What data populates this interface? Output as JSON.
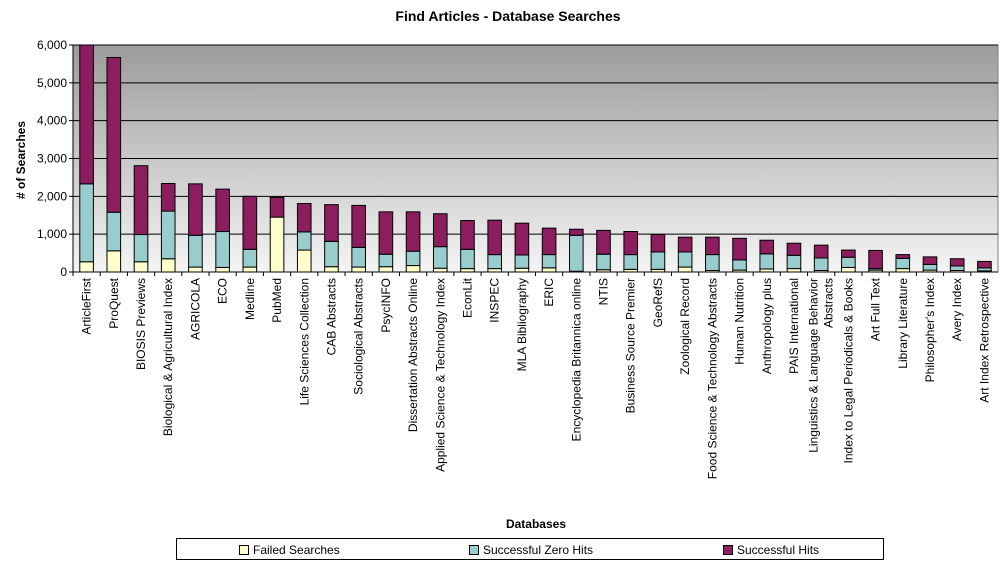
{
  "chart_data": {
    "type": "bar",
    "stacked": true,
    "title": "Find Articles - Database Searches",
    "xlabel": "Databases",
    "ylabel": "# of Searches",
    "ylim": [
      0,
      6000
    ],
    "yticks": [
      "0",
      "1,000",
      "2,000",
      "3,000",
      "4,000",
      "5,000",
      "6,000"
    ],
    "ytick_values": [
      0,
      1000,
      2000,
      3000,
      4000,
      5000,
      6000
    ],
    "grid": true,
    "legend_position": "bottom",
    "categories": [
      "ArticleFirst",
      "ProQuest",
      "BIOSIS Previews",
      "Biological & Agricultural Index",
      "AGRICOLA",
      "ECO",
      "Medline",
      "PubMed",
      "Life Sciences Collection",
      "CAB Abstracts",
      "Sociological Abstracts",
      "PsycINFO",
      "Dissertation Abstracts Online",
      "Applied Science & Technology Index",
      "EconLit",
      "INSPEC",
      "MLA Bibliography",
      "ERIC",
      "Encyclopedia Britannica online",
      "NTIS",
      "Business Source Premier",
      "GeoRefS",
      "Zoological Record",
      "Food Science & Technology Abstracts",
      "Human Nutrition",
      "Anthropology plus",
      "PAIS International",
      "Linguistics & Language Behavior Abstracts",
      "Index to Legal Periodicals & Books",
      "Art Full Text",
      "Library Literature",
      "Philosopher's Index",
      "Avery Index",
      "Art Index Retrospective"
    ],
    "category_lines": [
      [
        "ArticleFirst"
      ],
      [
        "ProQuest"
      ],
      [
        "BIOSIS Previews"
      ],
      [
        "Biological & Agricultural Index"
      ],
      [
        "AGRICOLA"
      ],
      [
        "ECO"
      ],
      [
        "Medline"
      ],
      [
        "PubMed"
      ],
      [
        "Life Sciences Collection"
      ],
      [
        "CAB Abstracts"
      ],
      [
        "Sociological Abstracts"
      ],
      [
        "PsycINFO"
      ],
      [
        "Dissertation Abstracts Online"
      ],
      [
        "Applied Science & Technology Index"
      ],
      [
        "EconLit"
      ],
      [
        "INSPEC"
      ],
      [
        "MLA Bibliography"
      ],
      [
        "ERIC"
      ],
      [
        "Encyclopedia Britannica online"
      ],
      [
        "NTIS"
      ],
      [
        "Business Source Premier"
      ],
      [
        "GeoRefS"
      ],
      [
        "Zoological Record"
      ],
      [
        "Food Science & Technology Abstracts"
      ],
      [
        "Human Nutrition"
      ],
      [
        "Anthropology plus"
      ],
      [
        "PAIS International"
      ],
      [
        "Linguistics & Language Behavior",
        "Abstracts"
      ],
      [
        "Index to Legal Periodicals & Books"
      ],
      [
        "Art Full Text"
      ],
      [
        "Library Literature"
      ],
      [
        "Philosopher's Index"
      ],
      [
        "Avery Index"
      ],
      [
        "Art Index Retrospective"
      ]
    ],
    "series": [
      {
        "name": "Failed Searches",
        "color": "#ffffcc",
        "values": [
          270,
          560,
          270,
          350,
          130,
          120,
          130,
          1450,
          580,
          140,
          130,
          140,
          170,
          100,
          90,
          90,
          100,
          110,
          20,
          60,
          70,
          70,
          130,
          40,
          50,
          80,
          90,
          40,
          120,
          50,
          90,
          50,
          40,
          30
        ]
      },
      {
        "name": "Successful Zero Hits",
        "color": "#99cccc",
        "values": [
          2060,
          1020,
          720,
          1260,
          840,
          950,
          470,
          0,
          480,
          670,
          520,
          330,
          380,
          570,
          510,
          370,
          350,
          350,
          950,
          410,
          390,
          460,
          400,
          420,
          270,
          400,
          350,
          330,
          270,
          40,
          270,
          150,
          120,
          80
        ]
      },
      {
        "name": "Successful Hits",
        "color": "#8c1d5e",
        "values": [
          3680,
          4090,
          1820,
          730,
          1360,
          1120,
          1400,
          520,
          750,
          970,
          1110,
          1120,
          1040,
          870,
          760,
          910,
          840,
          700,
          160,
          630,
          610,
          460,
          390,
          460,
          570,
          360,
          320,
          340,
          190,
          480,
          100,
          200,
          190,
          170
        ]
      }
    ]
  }
}
